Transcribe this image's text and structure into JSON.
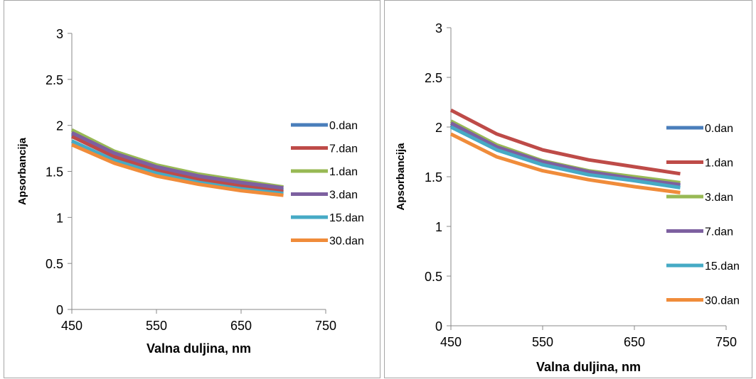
{
  "chart_data": [
    {
      "type": "line",
      "title": "",
      "xlabel": "Valna duljina, nm",
      "ylabel": "Apsorbancija",
      "xlim": [
        450,
        750
      ],
      "ylim": [
        0,
        3
      ],
      "xticks": [
        "450",
        "550",
        "650",
        "750"
      ],
      "yticks": [
        "0",
        "0.5",
        "1",
        "1.5",
        "2",
        "2.5",
        "3"
      ],
      "legend_position": "right",
      "x": [
        450,
        500,
        550,
        600,
        650,
        700
      ],
      "series": [
        {
          "name": "0.dan",
          "color": "#4a7ebb",
          "values": [
            1.9,
            1.68,
            1.53,
            1.43,
            1.36,
            1.3
          ]
        },
        {
          "name": "7.dan",
          "color": "#be4b48",
          "values": [
            1.88,
            1.66,
            1.51,
            1.41,
            1.34,
            1.28
          ]
        },
        {
          "name": "1.dan",
          "color": "#98b954",
          "values": [
            1.95,
            1.72,
            1.57,
            1.47,
            1.4,
            1.33
          ]
        },
        {
          "name": "3.dan",
          "color": "#7d60a0",
          "values": [
            1.92,
            1.7,
            1.55,
            1.45,
            1.38,
            1.32
          ]
        },
        {
          "name": "15.dan",
          "color": "#46aac5",
          "values": [
            1.83,
            1.62,
            1.48,
            1.38,
            1.31,
            1.26
          ]
        },
        {
          "name": "30.dan",
          "color": "#f08c3a",
          "values": [
            1.79,
            1.59,
            1.45,
            1.36,
            1.29,
            1.24
          ]
        }
      ]
    },
    {
      "type": "line",
      "title": "",
      "xlabel": "Valna duljina, nm",
      "ylabel": "Apsorbancija",
      "xlim": [
        450,
        750
      ],
      "ylim": [
        0,
        3
      ],
      "xticks": [
        "450",
        "550",
        "650",
        "750"
      ],
      "yticks": [
        "0",
        "0.5",
        "1",
        "1.5",
        "2",
        "2.5",
        "3"
      ],
      "legend_position": "right",
      "x": [
        450,
        500,
        550,
        600,
        650,
        700
      ],
      "series": [
        {
          "name": "0.dan",
          "color": "#4a7ebb",
          "values": [
            2.02,
            1.79,
            1.63,
            1.53,
            1.47,
            1.41
          ]
        },
        {
          "name": "1.dan",
          "color": "#be4b48",
          "values": [
            2.17,
            1.93,
            1.77,
            1.67,
            1.6,
            1.53
          ]
        },
        {
          "name": "3.dan",
          "color": "#98b954",
          "values": [
            2.06,
            1.82,
            1.66,
            1.56,
            1.5,
            1.44
          ]
        },
        {
          "name": "7.dan",
          "color": "#7d60a0",
          "values": [
            2.04,
            1.8,
            1.65,
            1.55,
            1.48,
            1.42
          ]
        },
        {
          "name": "15.dan",
          "color": "#46aac5",
          "values": [
            2.0,
            1.77,
            1.62,
            1.52,
            1.46,
            1.39
          ]
        },
        {
          "name": "30.dan",
          "color": "#f08c3a",
          "values": [
            1.93,
            1.7,
            1.56,
            1.47,
            1.4,
            1.34
          ]
        }
      ]
    }
  ]
}
